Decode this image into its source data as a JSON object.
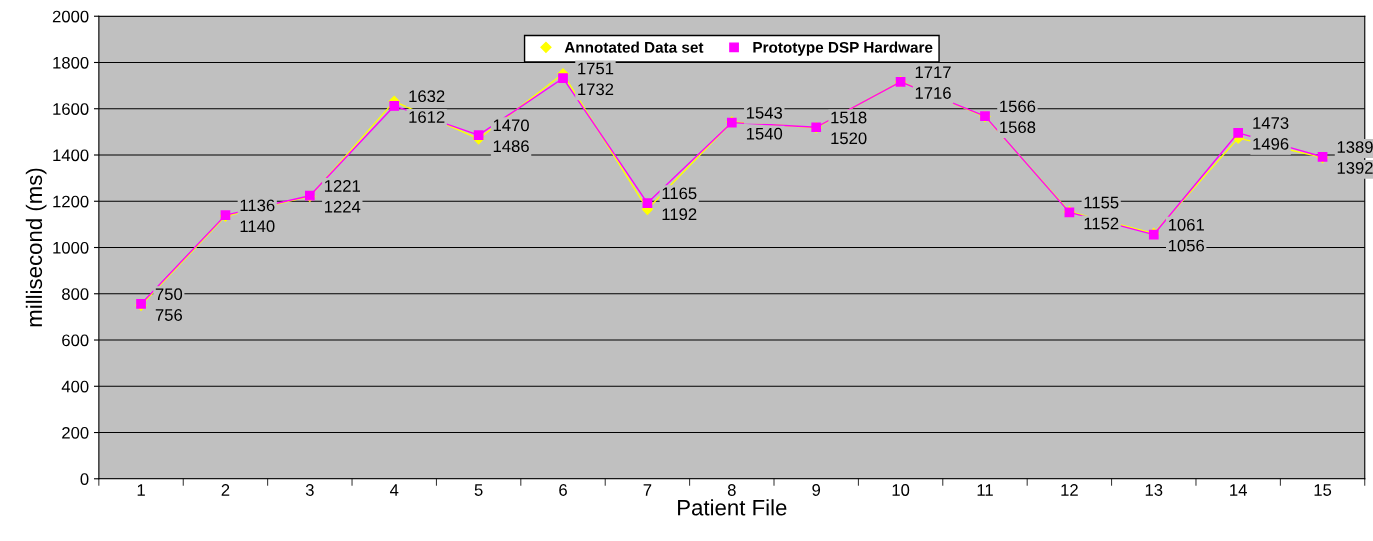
{
  "chart_data": {
    "type": "line",
    "xlabel": "Patient File",
    "ylabel": "millisecond (ms)",
    "categories": [
      "1",
      "2",
      "3",
      "4",
      "5",
      "6",
      "7",
      "8",
      "9",
      "10",
      "11",
      "12",
      "13",
      "14",
      "15"
    ],
    "series": [
      {
        "name": "Annotated Data set",
        "color": "#ffff00",
        "marker": "diamond",
        "values": [
          750,
          1136,
          1221,
          1632,
          1470,
          1751,
          1165,
          1543,
          1518,
          1717,
          1566,
          1155,
          1061,
          1473,
          1389
        ]
      },
      {
        "name": "Prototype DSP Hardware",
        "color": "#ff00ff",
        "marker": "square",
        "values": [
          756,
          1140,
          1224,
          1612,
          1486,
          1732,
          1192,
          1540,
          1520,
          1716,
          1568,
          1152,
          1056,
          1496,
          1392
        ]
      }
    ],
    "ylim": [
      0,
      2000
    ],
    "yticks": [
      0,
      200,
      400,
      600,
      800,
      1000,
      1200,
      1400,
      1600,
      1800,
      2000
    ],
    "grid": "y",
    "legend": "top",
    "data_labels": true
  }
}
